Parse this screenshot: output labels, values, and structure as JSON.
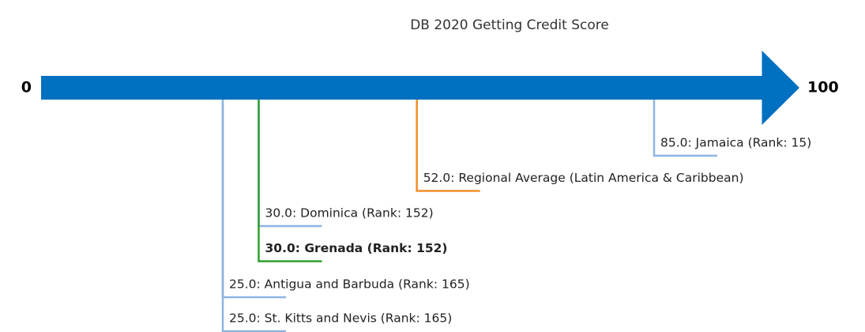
{
  "chart_data": {
    "type": "arrow-scale",
    "title": "DB 2020 Getting Credit Score",
    "xlim": [
      0,
      100
    ],
    "xticks": [
      0,
      100
    ],
    "arrow_color": "#0070c0",
    "items": [
      {
        "value": 85,
        "label": "85.0: Jamaica (Rank: 15)",
        "color": "#8db4e2",
        "bold": false
      },
      {
        "value": 52,
        "label": "52.0: Regional Average (Latin America & Caribbean)",
        "color": "#f28e2b",
        "bold": false
      },
      {
        "value": 30,
        "label": "30.0: Dominica (Rank: 152)",
        "color": "#8db4e2",
        "bold": false
      },
      {
        "value": 30,
        "label": "30.0: Grenada (Rank: 152)",
        "color": "#2ca02c",
        "bold": true
      },
      {
        "value": 25,
        "label": "25.0: Antigua and Barbuda (Rank: 165)",
        "color": "#8db4e2",
        "bold": false
      },
      {
        "value": 25,
        "label": "25.0: St. Kitts and Nevis (Rank: 165)",
        "color": "#8db4e2",
        "bold": false
      }
    ]
  }
}
